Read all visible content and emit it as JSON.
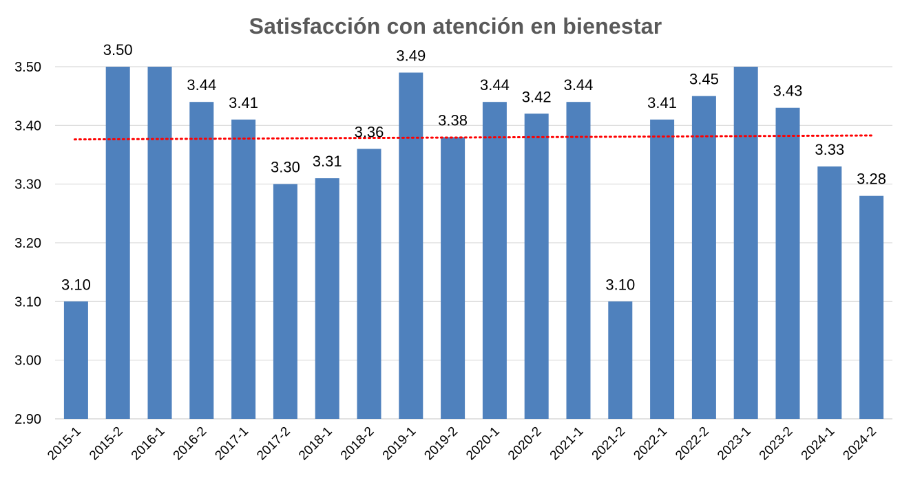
{
  "chart_data": {
    "type": "bar",
    "title": "Satisfacción con atención en bienestar",
    "xlabel": "",
    "ylabel": "",
    "categories": [
      "2015-1",
      "2015-2",
      "2016-1",
      "2016-2",
      "2017-1",
      "2017-2",
      "2018-1",
      "2018-2",
      "2019-1",
      "2019-2",
      "2020-1",
      "2020-2",
      "2021-1",
      "2021-2",
      "2022-1",
      "2022-2",
      "2023-1",
      "2023-2",
      "2024-1",
      "2024-2"
    ],
    "values": [
      3.1,
      3.5,
      3.5,
      3.44,
      3.41,
      3.3,
      3.31,
      3.36,
      3.49,
      3.38,
      3.44,
      3.42,
      3.44,
      3.1,
      3.41,
      3.45,
      3.5,
      3.43,
      3.33,
      3.28
    ],
    "data_labels": [
      "3.10",
      "3.50",
      "",
      "3.44",
      "3.41",
      "3.30",
      "3.31",
      "3.36",
      "3.49",
      "3.38",
      "3.44",
      "3.42",
      "3.44",
      "3.10",
      "3.41",
      "3.45",
      "",
      "3.43",
      "3.33",
      "3.28"
    ],
    "ylim": [
      2.9,
      3.5
    ],
    "yticks": [
      "2.90",
      "3.00",
      "3.10",
      "3.20",
      "3.30",
      "3.40",
      "3.50"
    ],
    "grid": true,
    "legend": "none",
    "trendline": {
      "type": "linear",
      "style": "dotted",
      "color": "#ff0000"
    },
    "colors": {
      "bar": "#4f81bd",
      "grid": "#d9d9d9",
      "title": "#595959"
    }
  }
}
